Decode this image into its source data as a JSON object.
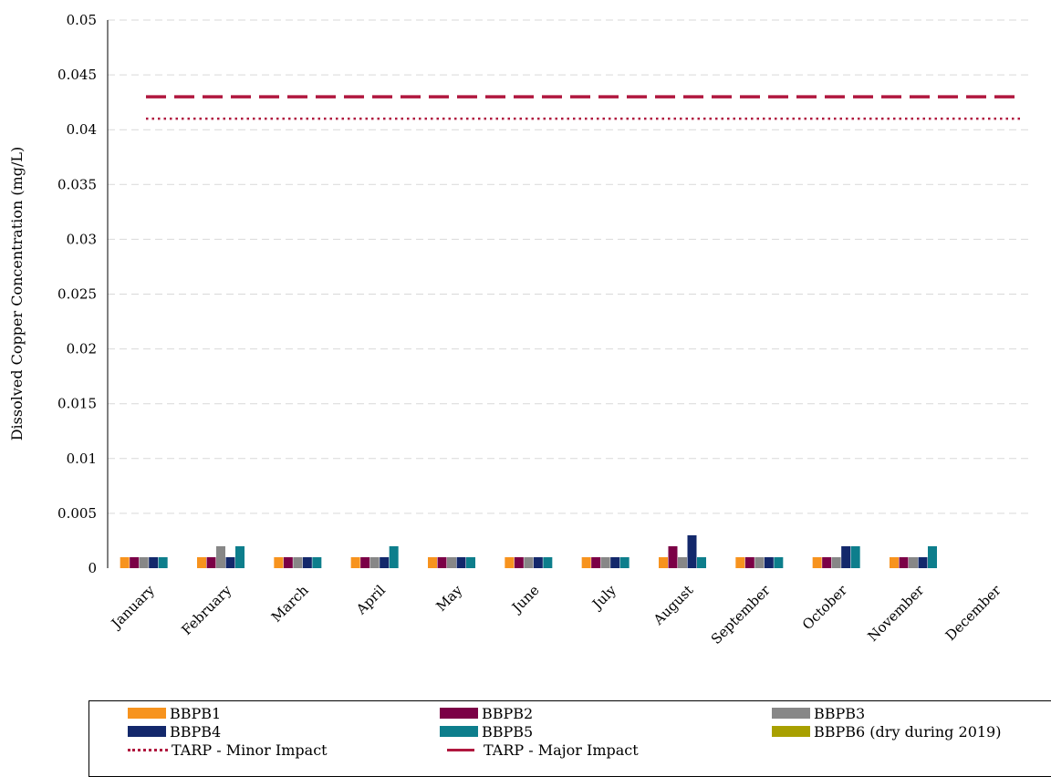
{
  "chart_data": {
    "type": "bar",
    "title": "",
    "xlabel": "",
    "ylabel": "Dissolved Copper Concentration (mg/L)",
    "ylim": [
      0,
      0.05
    ],
    "yticks": [
      "0",
      "0.005",
      "0.01",
      "0.015",
      "0.02",
      "0.025",
      "0.03",
      "0.035",
      "0.04",
      "0.045",
      "0.05"
    ],
    "grid": true,
    "legend_position": "bottom",
    "categories": [
      "January",
      "February",
      "March",
      "April",
      "May",
      "June",
      "July",
      "August",
      "September",
      "October",
      "November",
      "December"
    ],
    "series": [
      {
        "name": "BBPB1",
        "color": "#F7931E",
        "values": [
          0.001,
          0.001,
          0.001,
          0.001,
          0.001,
          0.001,
          0.001,
          0.001,
          0.001,
          0.001,
          0.001,
          null
        ]
      },
      {
        "name": "BBPB2",
        "color": "#7B0046",
        "values": [
          0.001,
          0.001,
          0.001,
          0.001,
          0.001,
          0.001,
          0.001,
          0.002,
          0.001,
          0.001,
          0.001,
          null
        ]
      },
      {
        "name": "BBPB3",
        "color": "#878787",
        "values": [
          0.001,
          0.002,
          0.001,
          0.001,
          0.001,
          0.001,
          0.001,
          0.001,
          0.001,
          0.001,
          0.001,
          null
        ]
      },
      {
        "name": "BBPB4",
        "color": "#13286B",
        "values": [
          0.001,
          0.001,
          0.001,
          0.001,
          0.001,
          0.001,
          0.001,
          0.003,
          0.001,
          0.002,
          0.001,
          null
        ]
      },
      {
        "name": "BBPB5",
        "color": "#0D7E8C",
        "values": [
          0.001,
          0.002,
          0.001,
          0.002,
          0.001,
          0.001,
          0.001,
          0.001,
          0.001,
          0.002,
          0.002,
          null
        ]
      },
      {
        "name": "BBPB6 (dry during 2019)",
        "color": "#A8A000",
        "values": [
          null,
          null,
          null,
          null,
          null,
          null,
          null,
          null,
          null,
          null,
          null,
          null
        ]
      }
    ],
    "reference_lines": [
      {
        "name": "TARP - Minor Impact",
        "value": 0.041,
        "style": "dotted",
        "color": "#B0173E"
      },
      {
        "name": "TARP - Major Impact",
        "value": 0.043,
        "style": "dashed",
        "color": "#B0173E"
      }
    ]
  }
}
